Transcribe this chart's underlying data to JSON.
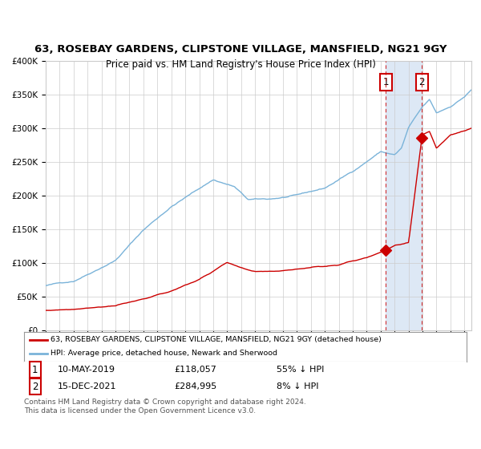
{
  "title1": "63, ROSEBAY GARDENS, CLIPSTONE VILLAGE, MANSFIELD, NG21 9GY",
  "title2": "Price paid vs. HM Land Registry's House Price Index (HPI)",
  "legend_red": "63, ROSEBAY GARDENS, CLIPSTONE VILLAGE, MANSFIELD, NG21 9GY (detached house)",
  "legend_blue": "HPI: Average price, detached house, Newark and Sherwood",
  "annotation1_label": "1",
  "annotation1_date": "10-MAY-2019",
  "annotation1_price": "£118,057",
  "annotation1_hpi": "55% ↓ HPI",
  "annotation2_label": "2",
  "annotation2_date": "15-DEC-2021",
  "annotation2_price": "£284,995",
  "annotation2_hpi": "8% ↓ HPI",
  "footer": "Contains HM Land Registry data © Crown copyright and database right 2024.\nThis data is licensed under the Open Government Licence v3.0.",
  "sale1_year": 2019.36,
  "sale1_value": 118057,
  "sale2_year": 2021.95,
  "sale2_value": 284995,
  "ylim_max": 400000,
  "hpi_color": "#7ab3d9",
  "sale_color": "#cc0000",
  "bg_color": "#ffffff",
  "grid_color": "#cccccc",
  "shade_color": "#dde8f5"
}
